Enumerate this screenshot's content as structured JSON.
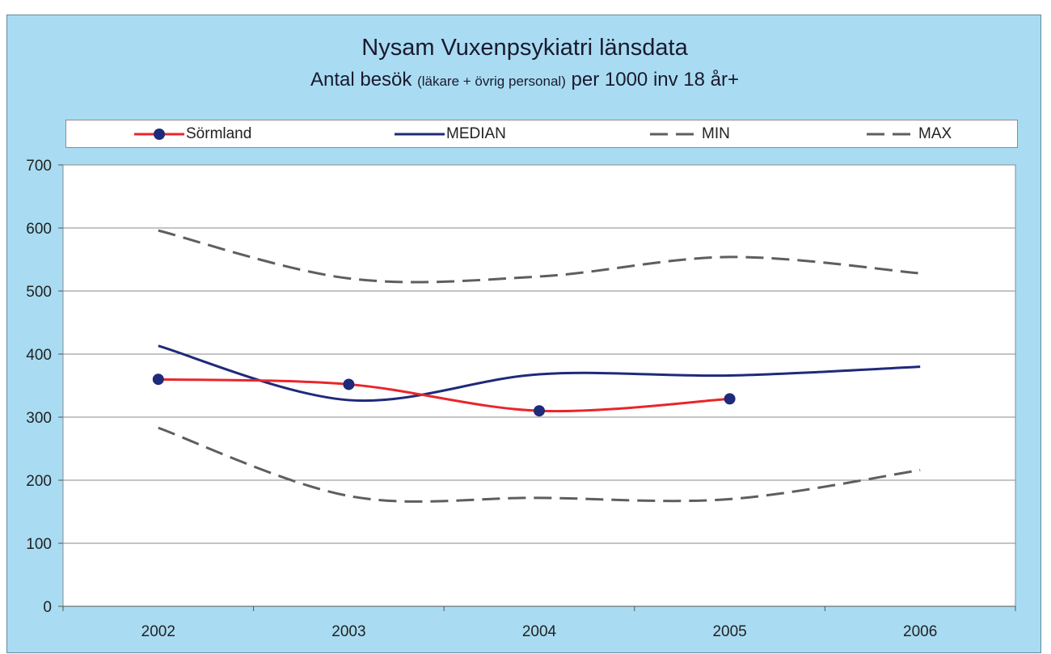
{
  "chart_data": {
    "type": "line",
    "title": "Nysam Vuxenpsykiatri länsdata",
    "subtitle_main": "Antal besök",
    "subtitle_small": "(läkare + övrig personal)",
    "subtitle_end": "per 1000 inv 18 år+",
    "x": [
      "2002",
      "2003",
      "2004",
      "2005",
      "2006"
    ],
    "y_ticks": [
      "0",
      "100",
      "200",
      "300",
      "400",
      "500",
      "600",
      "700"
    ],
    "ylim": [
      0,
      700
    ],
    "grid": true,
    "legend_position": "top",
    "series": [
      {
        "name": "Sörmland",
        "color": "#e8262b",
        "style": "solid-marker",
        "values": [
          360,
          352,
          310,
          329,
          null
        ]
      },
      {
        "name": "MEDIAN",
        "color": "#1f2a7a",
        "style": "solid",
        "values": [
          413,
          327,
          368,
          366,
          380
        ]
      },
      {
        "name": "MIN",
        "color": "#5e5e5e",
        "style": "dashed",
        "values": [
          283,
          175,
          172,
          170,
          216
        ]
      },
      {
        "name": "MAX",
        "color": "#5e5e5e",
        "style": "dashed",
        "values": [
          596,
          520,
          523,
          554,
          528
        ]
      }
    ]
  }
}
